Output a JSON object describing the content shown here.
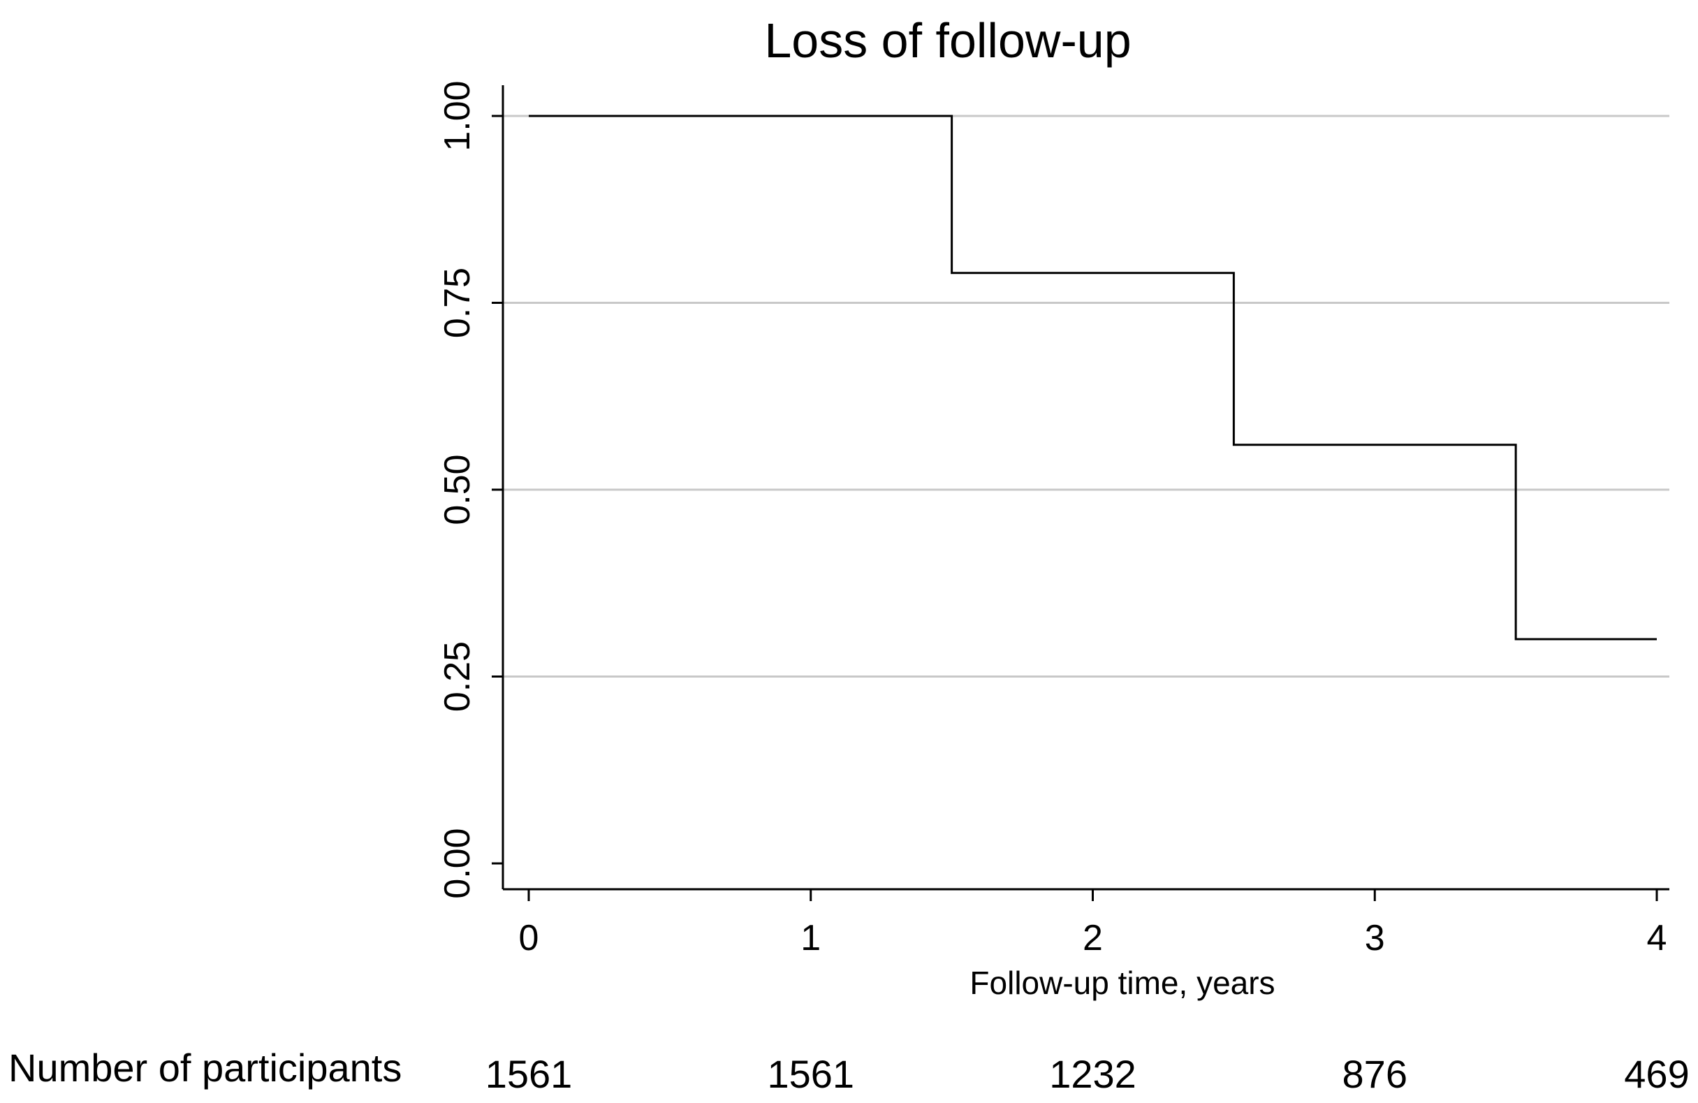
{
  "chart_data": {
    "type": "line",
    "subtype": "kaplan-meier-step",
    "title": "Loss of follow-up",
    "xlabel": "Follow-up time, years",
    "ylabel": "",
    "xlim": [
      0,
      4
    ],
    "ylim": [
      0,
      1
    ],
    "x_ticks": [
      0,
      1,
      2,
      3,
      4
    ],
    "x_tick_labels": [
      "0",
      "1",
      "2",
      "3",
      "4"
    ],
    "y_ticks": [
      0,
      0.25,
      0.5,
      0.75,
      1
    ],
    "y_tick_labels": [
      "0.00",
      "0.25",
      "0.50",
      "0.75",
      "1.00"
    ],
    "grid": "horizontal",
    "legend": "none",
    "line_color": "#000000",
    "grid_color": "#c8c8c8",
    "series": [
      {
        "step": "post",
        "x": [
          0,
          1.5,
          2.5,
          3.5,
          4
        ],
        "y": [
          1.0,
          0.79,
          0.56,
          0.3,
          0.3
        ]
      }
    ],
    "risk_table": {
      "label": "Number of participants",
      "x": [
        0,
        1,
        2,
        3,
        4
      ],
      "values": [
        "1561",
        "1561",
        "1232",
        "876",
        "469"
      ]
    }
  }
}
